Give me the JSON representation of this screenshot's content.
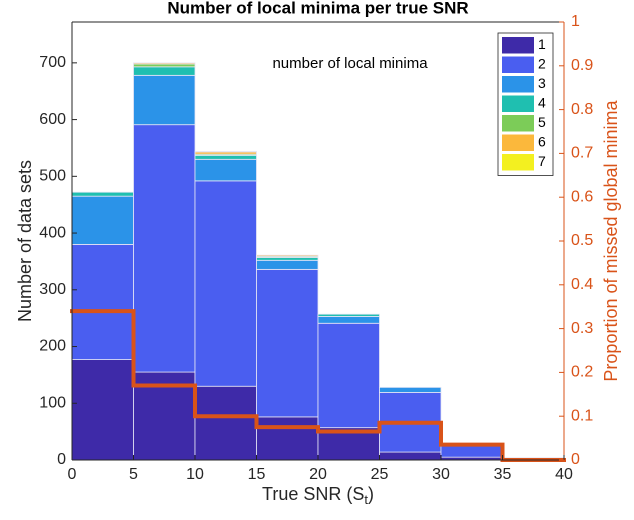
{
  "chart_data": {
    "type": "histogram",
    "title": "Number of local minima per true SNR",
    "xlabel": "True SNR (S",
    "xlabel_sub": "t",
    "xlabel_end": ")",
    "ylabel": "Number of data sets",
    "y2label": "Proportion of missed global minima",
    "annotation": "number of local minima",
    "bins": [
      0,
      5,
      10,
      15,
      20,
      25,
      30,
      35,
      40
    ],
    "series": [
      {
        "name": "1",
        "color": "#3e2aa8",
        "values": [
          177,
          155,
          130,
          76,
          57,
          14,
          5,
          2
        ]
      },
      {
        "name": "2",
        "color": "#4a5ef0",
        "values": [
          203,
          436,
          362,
          260,
          184,
          105,
          20,
          2
        ]
      },
      {
        "name": "3",
        "color": "#2b93e8",
        "values": [
          85,
          87,
          38,
          16,
          12,
          9,
          0,
          0
        ]
      },
      {
        "name": "4",
        "color": "#1fbfb0",
        "values": [
          7,
          15,
          7,
          5,
          4,
          0,
          0,
          0
        ]
      },
      {
        "name": "5",
        "color": "#7ccc58",
        "values": [
          0,
          5,
          2,
          2,
          0,
          0,
          0,
          0
        ]
      },
      {
        "name": "6",
        "color": "#fbb83c",
        "values": [
          0,
          2,
          4,
          2,
          0,
          0,
          0,
          0
        ]
      },
      {
        "name": "7",
        "color": "#f3f020",
        "values": [
          0,
          0,
          1,
          0,
          0,
          0,
          0,
          0
        ]
      }
    ],
    "y2_series": {
      "color": "#d95319",
      "axis": "y2",
      "values": [
        0.34,
        0.17,
        0.1,
        0.075,
        0.065,
        0.085,
        0.035,
        0
      ]
    },
    "xlim": [
      0,
      40
    ],
    "xticks": [
      0,
      5,
      10,
      15,
      20,
      25,
      30,
      35,
      40
    ],
    "ylim": [
      0,
      772
    ],
    "yticks": [
      0,
      100,
      200,
      300,
      400,
      500,
      600,
      700
    ],
    "y2lim": [
      0,
      1
    ],
    "y2ticks": [
      0,
      0.1,
      0.2,
      0.3,
      0.4,
      0.5,
      0.6,
      0.7,
      0.8,
      0.9,
      1
    ],
    "legend": "upper right",
    "grid": false
  }
}
